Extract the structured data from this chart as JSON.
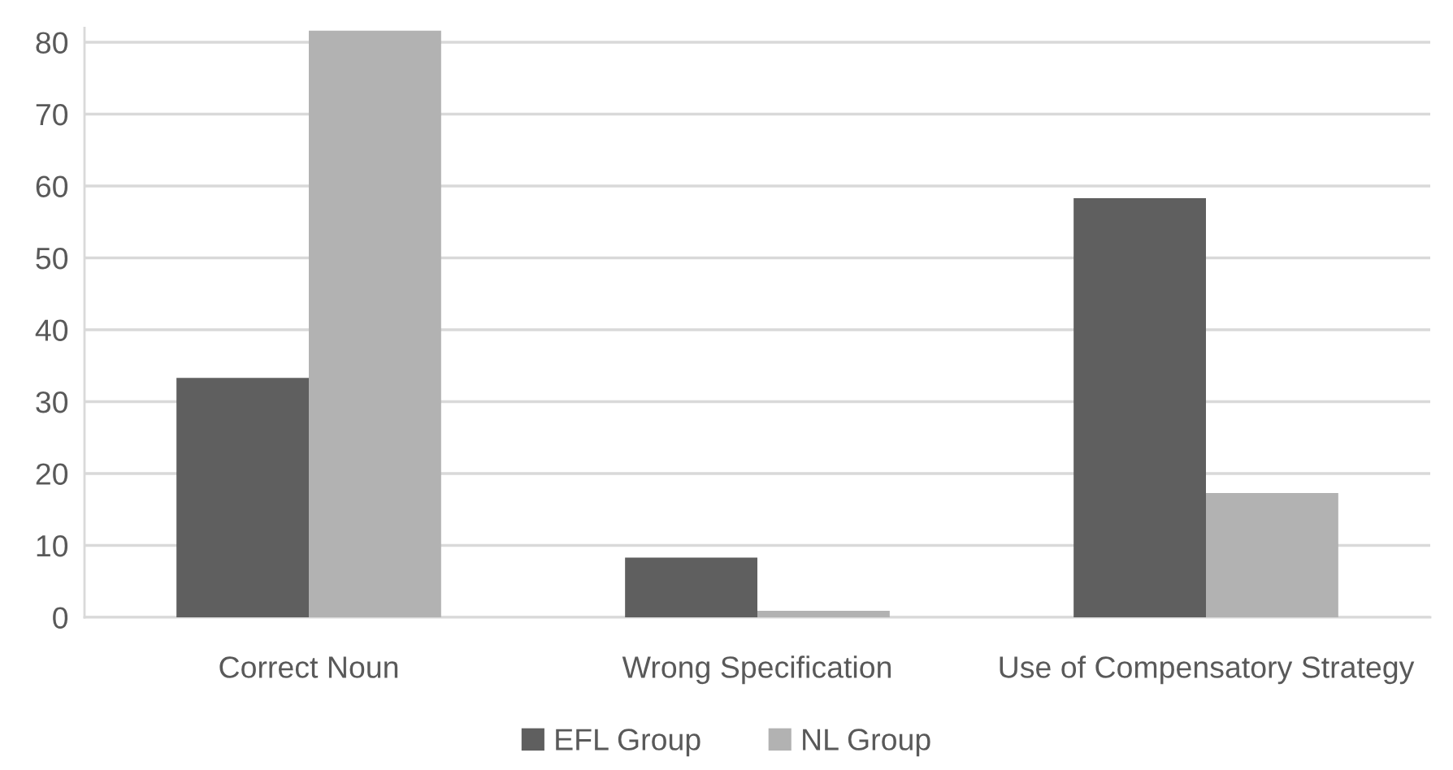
{
  "chart_data": {
    "type": "bar",
    "categories": [
      "Correct Noun",
      "Wrong Specification",
      "Use of Compensatory Strategy"
    ],
    "series": [
      {
        "name": "EFL Group",
        "color": "#5f5f5f",
        "values": [
          33.3,
          8.3,
          58.3
        ]
      },
      {
        "name": "NL Group",
        "color": "#b2b2b2",
        "values": [
          81.6,
          0.9,
          17.3
        ]
      }
    ],
    "ylim": [
      0,
      82
    ],
    "yticks": [
      0,
      10,
      20,
      30,
      40,
      50,
      60,
      70,
      80
    ],
    "grid": "y",
    "legend": "bottom"
  }
}
